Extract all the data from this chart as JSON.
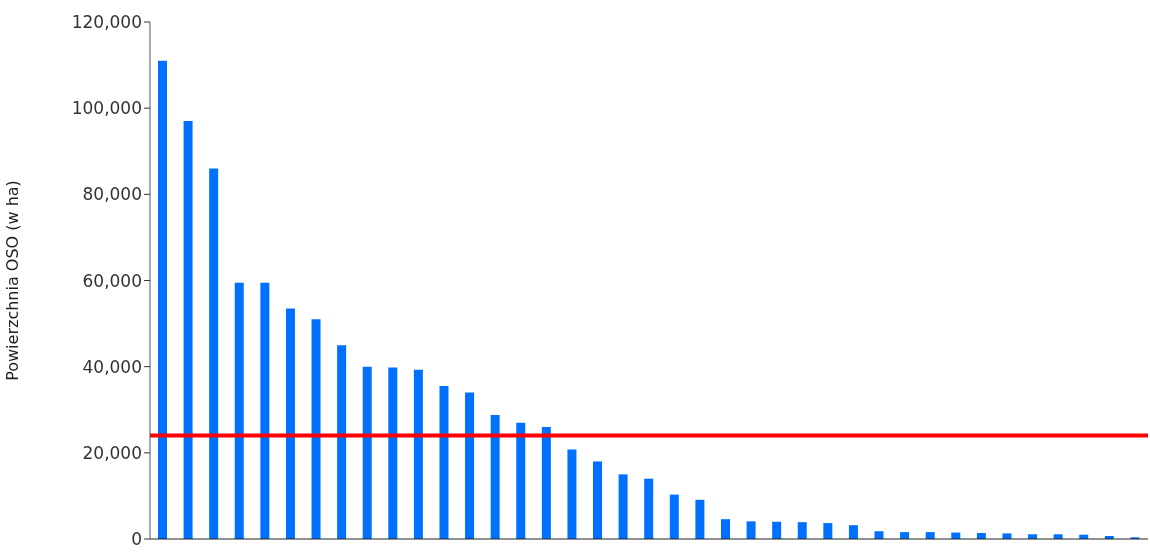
{
  "chart_data": {
    "type": "bar",
    "ylabel": "Powierzchnia OSO (w ha)",
    "categories": [
      null,
      null,
      null,
      null,
      null,
      null,
      null,
      null,
      null,
      null,
      null,
      null,
      null,
      null,
      null,
      null,
      null,
      null,
      null,
      null,
      null,
      null,
      null,
      null,
      null,
      null,
      null,
      null,
      null,
      null,
      null,
      null,
      null,
      null,
      null,
      null,
      null,
      null,
      null
    ],
    "values": [
      111000,
      97000,
      86000,
      59500,
      59500,
      53500,
      51000,
      45000,
      40000,
      39800,
      39300,
      35500,
      34000,
      28800,
      27000,
      26000,
      20800,
      18000,
      15000,
      14000,
      10300,
      9100,
      4600,
      4100,
      4000,
      3900,
      3700,
      3200,
      1800,
      1600,
      1600,
      1500,
      1400,
      1300,
      1100,
      1100,
      1000,
      700,
      400
    ],
    "color": "#0070ff",
    "ylim": [
      0,
      120000
    ],
    "yticks": [
      0,
      {
        "value": 20000,
        "label": "20,000"
      },
      {
        "value": 40000,
        "label": "40,000"
      },
      {
        "value": 60000,
        "label": "60,000"
      },
      {
        "value": 80000,
        "label": "80,000"
      },
      {
        "value": 100000,
        "label": "100,000"
      },
      {
        "value": 120000,
        "label": "120,000"
      }
    ],
    "ref_lines": [
      {
        "axis": "y",
        "value": 24000,
        "color": "#ff0000"
      }
    ],
    "tick_labels": "y"
  }
}
